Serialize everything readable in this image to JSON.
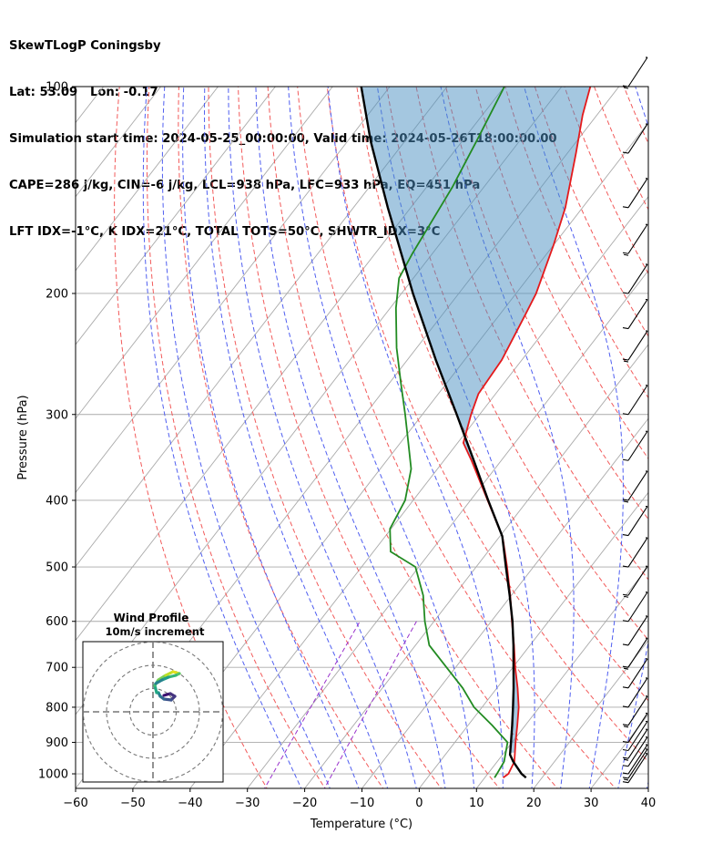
{
  "header": {
    "line1": "SkewTLogP Coningsby",
    "line2": "Lat: 53.09   Lon: -0.17",
    "line3": "Simulation start time: 2024-05-25_00:00:00, Valid time: 2024-05-26T18:00:00.00",
    "line4": "CAPE=286 j/kg, CIN=-6 j/kg, LCL=938 hPa, LFC=933 hPa, EQ=451 hPa",
    "line5": "LFT IDX=-1°C, K IDX=21°C, TOTAL TOTS=50°C, SHWTR_IDX=3°C"
  },
  "chart_data": {
    "type": "line",
    "skew": "skew-T log-P",
    "xlabel": "Temperature (°C)",
    "ylabel": "Pressure (hPa)",
    "xlim": [
      -60,
      40
    ],
    "ylim": [
      1050,
      100
    ],
    "yscale": "log",
    "x_ticks": [
      -60,
      -50,
      -40,
      -30,
      -20,
      -10,
      0,
      10,
      20,
      30,
      40
    ],
    "x_tick_labels": [
      "−60",
      "−50",
      "−40",
      "−30",
      "−20",
      "−10",
      "0",
      "10",
      "20",
      "30",
      "40"
    ],
    "y_ticks": [
      1000,
      900,
      800,
      700,
      600,
      500,
      400,
      300,
      200,
      100
    ],
    "y_tick_labels": [
      "1000",
      "900",
      "800",
      "700",
      "600",
      "500",
      "400",
      "300",
      "200",
      "100"
    ],
    "grid": true,
    "colors": {
      "temperature": "#e41a1c",
      "dewpoint": "#228b22",
      "parcel": "#000000",
      "cape_fill": "#4a90c2",
      "cin_fill": "#e88a8a",
      "dry_adiabats": "#f25a5a",
      "moist_adiabats": "#4f5ef0",
      "isotherms": "#aaaaaa",
      "mixing_ratio": "#9932cc"
    },
    "temperature": [
      {
        "p": 1013,
        "t": 13.2
      },
      {
        "p": 1000,
        "t": 13.6
      },
      {
        "p": 960,
        "t": 13.0
      },
      {
        "p": 900,
        "t": 10.6
      },
      {
        "p": 850,
        "t": 8.6
      },
      {
        "p": 800,
        "t": 6.4
      },
      {
        "p": 750,
        "t": 3.6
      },
      {
        "p": 700,
        "t": 0.4
      },
      {
        "p": 650,
        "t": -2.8
      },
      {
        "p": 600,
        "t": -6.4
      },
      {
        "p": 550,
        "t": -10.2
      },
      {
        "p": 500,
        "t": -14.6
      },
      {
        "p": 460,
        "t": -18.6
      },
      {
        "p": 451,
        "t": -19.6
      },
      {
        "p": 400,
        "t": -27.0
      },
      {
        "p": 350,
        "t": -35.2
      },
      {
        "p": 330,
        "t": -39.0
      },
      {
        "p": 300,
        "t": -41.5
      },
      {
        "p": 280,
        "t": -43.0
      },
      {
        "p": 250,
        "t": -43.5
      },
      {
        "p": 215,
        "t": -45.5
      },
      {
        "p": 200,
        "t": -46.5
      },
      {
        "p": 170,
        "t": -50.0
      },
      {
        "p": 150,
        "t": -53.0
      },
      {
        "p": 125,
        "t": -58.5
      },
      {
        "p": 110,
        "t": -62.5
      },
      {
        "p": 100,
        "t": -65.0
      }
    ],
    "dewpoint": [
      {
        "p": 1013,
        "t": 11.7
      },
      {
        "p": 1000,
        "t": 11.6
      },
      {
        "p": 960,
        "t": 11.2
      },
      {
        "p": 900,
        "t": 9.2
      },
      {
        "p": 850,
        "t": 4.2
      },
      {
        "p": 800,
        "t": -1.4
      },
      {
        "p": 750,
        "t": -6.0
      },
      {
        "p": 700,
        "t": -11.6
      },
      {
        "p": 650,
        "t": -17.6
      },
      {
        "p": 600,
        "t": -21.6
      },
      {
        "p": 550,
        "t": -25.4
      },
      {
        "p": 500,
        "t": -30.6
      },
      {
        "p": 475,
        "t": -37.0
      },
      {
        "p": 440,
        "t": -40.2
      },
      {
        "p": 400,
        "t": -41.4
      },
      {
        "p": 360,
        "t": -44.6
      },
      {
        "p": 330,
        "t": -48.6
      },
      {
        "p": 300,
        "t": -53.0
      },
      {
        "p": 270,
        "t": -58.0
      },
      {
        "p": 240,
        "t": -63.5
      },
      {
        "p": 210,
        "t": -69.0
      },
      {
        "p": 190,
        "t": -72.5
      },
      {
        "p": 175,
        "t": -73.5
      },
      {
        "p": 140,
        "t": -75.5
      },
      {
        "p": 120,
        "t": -77.5
      },
      {
        "p": 100,
        "t": -80.0
      }
    ],
    "parcel": [
      {
        "p": 1013,
        "t": 17.2
      },
      {
        "p": 1000,
        "t": 15.9
      },
      {
        "p": 960,
        "t": 12.8
      },
      {
        "p": 938,
        "t": 11.3
      },
      {
        "p": 900,
        "t": 9.8
      },
      {
        "p": 850,
        "t": 7.7
      },
      {
        "p": 800,
        "t": 5.4
      },
      {
        "p": 750,
        "t": 2.9
      },
      {
        "p": 700,
        "t": 0.1
      },
      {
        "p": 650,
        "t": -2.9
      },
      {
        "p": 600,
        "t": -6.3
      },
      {
        "p": 550,
        "t": -10.3
      },
      {
        "p": 500,
        "t": -14.8
      },
      {
        "p": 451,
        "t": -19.6
      },
      {
        "p": 400,
        "t": -26.9
      },
      {
        "p": 350,
        "t": -34.8
      },
      {
        "p": 300,
        "t": -44.0
      },
      {
        "p": 250,
        "t": -55.0
      },
      {
        "p": 200,
        "t": -68.0
      },
      {
        "p": 150,
        "t": -84.0
      },
      {
        "p": 120,
        "t": -96.0
      },
      {
        "p": 100,
        "t": -105.0
      }
    ],
    "wind_barb_pressures": [
      1030,
      1015,
      1000,
      975,
      950,
      925,
      900,
      850,
      800,
      750,
      700,
      650,
      600,
      550,
      500,
      450,
      400,
      350,
      300,
      250,
      225,
      200,
      175,
      150,
      125,
      100
    ],
    "wind_profile_inset": {
      "title": "Wind Profile",
      "subtitle": "10m/s increment",
      "rings_ms": [
        10,
        20,
        30
      ]
    }
  }
}
